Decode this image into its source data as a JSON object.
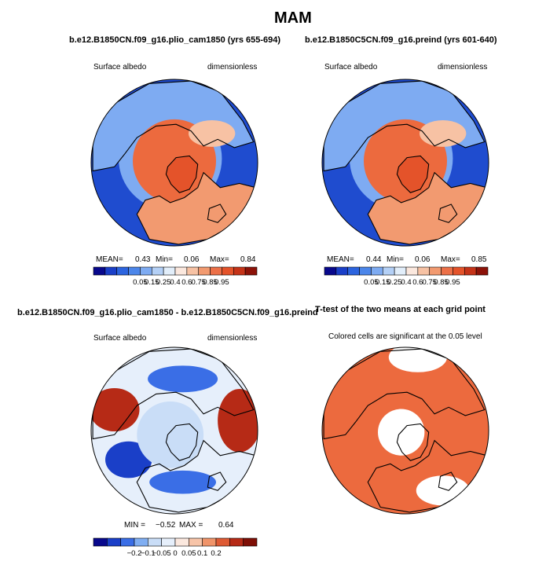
{
  "chart_data": {
    "type": "map",
    "title": "MAM",
    "panels": [
      {
        "id": "plio",
        "title": "b.e12.B1850CN.f09_g16.plio_cam1850 (yrs 655-694)",
        "left_label": "Surface albedo",
        "right_label": "dimensionless",
        "stats": {
          "mean_label": "MEAN=",
          "mean": "0.43",
          "min_label": "Min=",
          "min": "0.06",
          "max_label": "Max=",
          "max": "0.84"
        },
        "colorbar": {
          "levels": [
            "0.05",
            "0.15",
            "0.25",
            "0.4",
            "0.6",
            "0.75",
            "0.85",
            "0.95"
          ],
          "range": [
            0,
            1
          ]
        }
      },
      {
        "id": "preind",
        "title": "b.e12.B1850C5CN.f09_g16.preind (yrs 601-640)",
        "left_label": "Surface albedo",
        "right_label": "dimensionless",
        "stats": {
          "mean_label": "MEAN=",
          "mean": "0.44",
          "min_label": "Min=",
          "min": "0.06",
          "max_label": "Max=",
          "max": "0.85"
        },
        "colorbar": {
          "levels": [
            "0.05",
            "0.15",
            "0.25",
            "0.4",
            "0.6",
            "0.75",
            "0.85",
            "0.95"
          ],
          "range": [
            0,
            1
          ]
        }
      },
      {
        "id": "diff",
        "title": "b.e12.B1850CN.f09_g16.plio_cam1850 - b.e12.B1850C5CN.f09_g16.preind",
        "left_label": "Surface albedo",
        "right_label": "dimensionless",
        "stats": {
          "min_label": "MIN =",
          "min": "−0.52",
          "max_label": "MAX =",
          "max": "0.64"
        },
        "colorbar": {
          "levels": [
            "−0.2",
            "−0.1",
            "−0.05",
            "0",
            "0.05",
            "0.1",
            "0.2"
          ],
          "range": [
            -0.25,
            0.25
          ]
        }
      },
      {
        "id": "ttest",
        "title": "T-test of the two means at each grid point",
        "note": "Colored cells are significant at the 0.05 level"
      }
    ]
  },
  "colors": {
    "seq_scale": [
      "#08088c",
      "#1a3fc8",
      "#2c64df",
      "#4c86ea",
      "#7eabf2",
      "#b4d0f6",
      "#e2eefa",
      "#fbe8de",
      "#f7c2a4",
      "#f29a70",
      "#ec7048",
      "#e4532a",
      "#c53318",
      "#8c1208"
    ],
    "div_scale": [
      "#08088c",
      "#1a3fc8",
      "#3a6ee6",
      "#80aef2",
      "#c9ddf7",
      "#e6effb",
      "#fbe8de",
      "#f7c4a8",
      "#f0946a",
      "#de5a34",
      "#b62a16",
      "#7e0e06"
    ],
    "land_high": "#ec6a3e",
    "ocean_low": "#1f4ccf",
    "significant": "#ec6a3e"
  }
}
